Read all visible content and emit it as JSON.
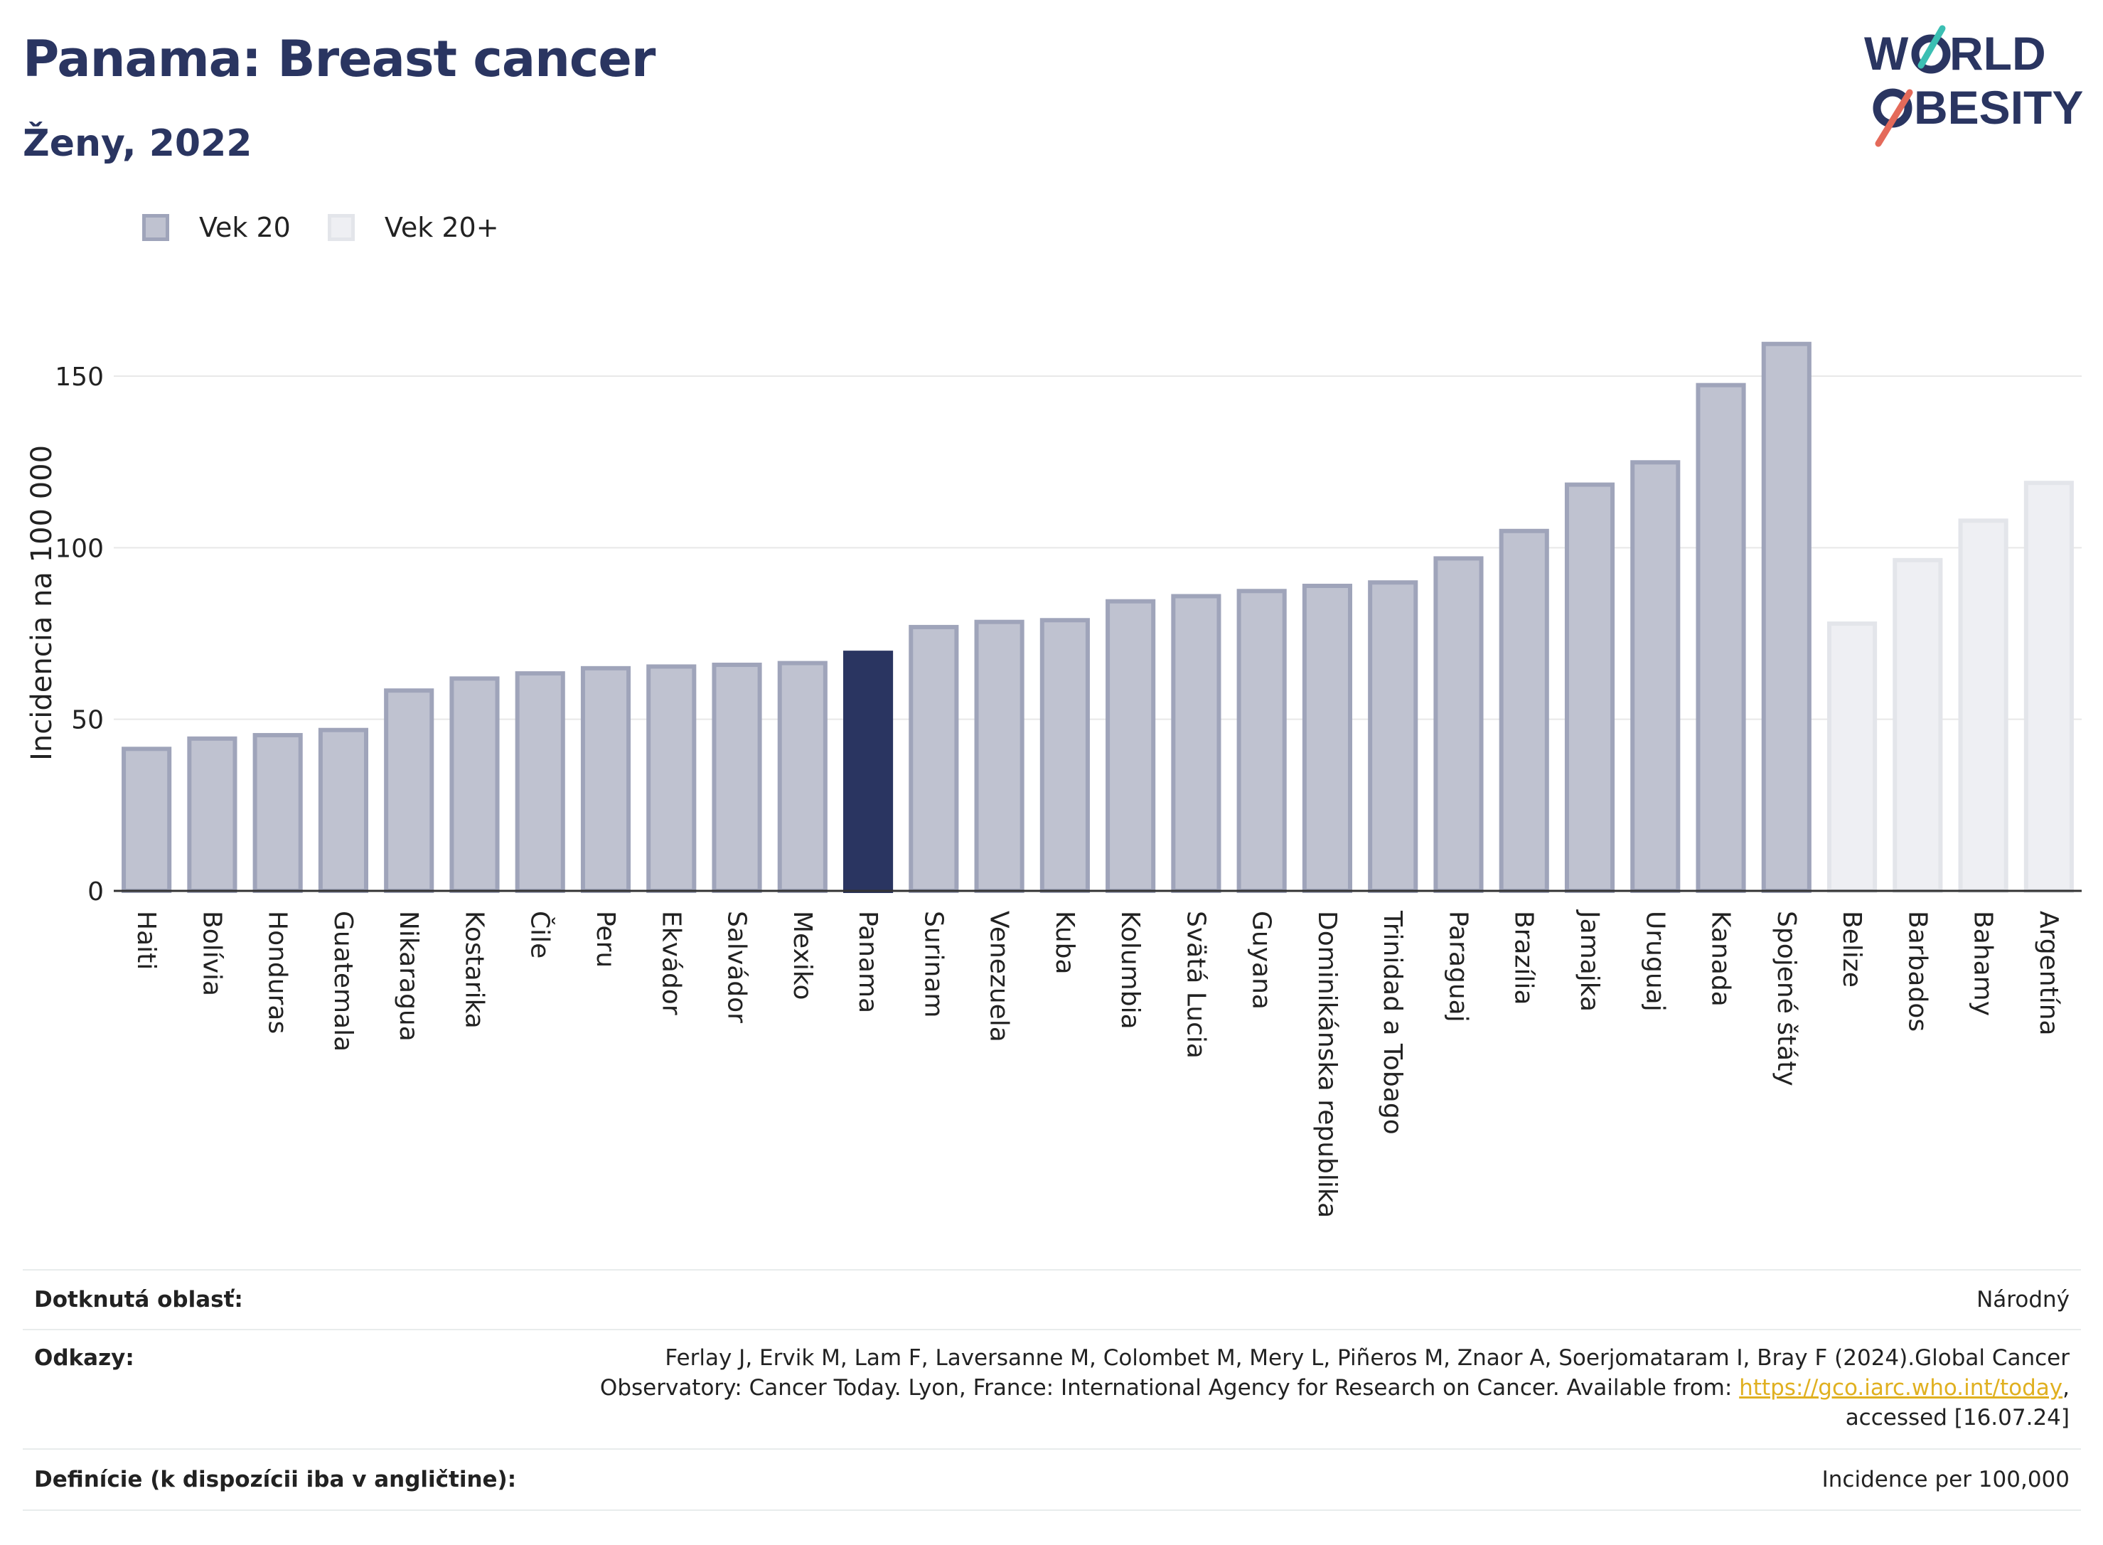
{
  "header": {
    "title": "Panama: Breast cancer",
    "subtitle": "Ženy, 2022"
  },
  "logo": {
    "line1": "WORLD",
    "line2": "OBESITY",
    "text": "WORLD OBESITY"
  },
  "legend": {
    "items": [
      {
        "label": "Vek 20",
        "color": "#bfc2d0",
        "border": "#9fa4ba"
      },
      {
        "label": "Vek 20+",
        "color": "#eeeff3",
        "border": "#e3e5ea"
      }
    ]
  },
  "colors": {
    "highlight": "#2a3561",
    "series_fill": "#bfc2d0",
    "series_border": "#9fa4ba",
    "light_fill": "#eeeff3",
    "light_border": "#e3e5ea",
    "grid": "#e8e8e8",
    "link": "#e0b020"
  },
  "chart_data": {
    "type": "bar",
    "ylabel": "Incidencia na 100 000",
    "xlabel": "",
    "ylim": [
      0,
      172
    ],
    "yticks": [
      0,
      50,
      100,
      150
    ],
    "grid": true,
    "legend_position": "top-left",
    "highlight": "Panama",
    "categories": [
      "Haiti",
      "Bolívia",
      "Honduras",
      "Guatemala",
      "Nikaragua",
      "Kostarika",
      "Čile",
      "Peru",
      "Ekvádor",
      "Salvádor",
      "Mexiko",
      "Panama",
      "Surinam",
      "Venezuela",
      "Kuba",
      "Kolumbia",
      "Svätá Lucia",
      "Guyana",
      "Dominikánska republika",
      "Trinidad a Tobago",
      "Paraguaj",
      "Brazília",
      "Jamajka",
      "Uruguaj",
      "Kanada",
      "Spojené štáty",
      "Belize",
      "Barbados",
      "Bahamy",
      "Argentína"
    ],
    "values": [
      42,
      45,
      46,
      47.5,
      59,
      62.5,
      64,
      65.5,
      66,
      66.5,
      67,
      70,
      77.5,
      79,
      79.5,
      85,
      86.5,
      88,
      89.5,
      90.5,
      97.5,
      105.5,
      119,
      125.5,
      148,
      160,
      78.5,
      97,
      108.5,
      119.5
    ],
    "series_index": [
      0,
      0,
      0,
      0,
      0,
      0,
      0,
      0,
      0,
      0,
      0,
      0,
      0,
      0,
      0,
      0,
      0,
      0,
      0,
      0,
      0,
      0,
      0,
      0,
      0,
      0,
      1,
      1,
      1,
      1
    ]
  },
  "footer": {
    "rows": [
      {
        "label": "Dotknutá oblasť:",
        "value": "Národný"
      },
      {
        "label": "Odkazy:",
        "ref_line1": "Ferlay J, Ervik M, Lam F, Laversanne M, Colombet M, Mery L, Piñeros M, Znaor A, Soerjomataram I, Bray F (2024).Global Cancer",
        "ref_line2": "Observatory: Cancer Today. Lyon, France: International Agency for Research on Cancer. Available from: ",
        "link": "https://gco.iarc.who.int/today",
        "ref_line3": "accessed [16.07.24]"
      },
      {
        "label": "Definície (k dispozícii iba v angličtine):",
        "value": "Incidence per 100,000"
      }
    ]
  }
}
